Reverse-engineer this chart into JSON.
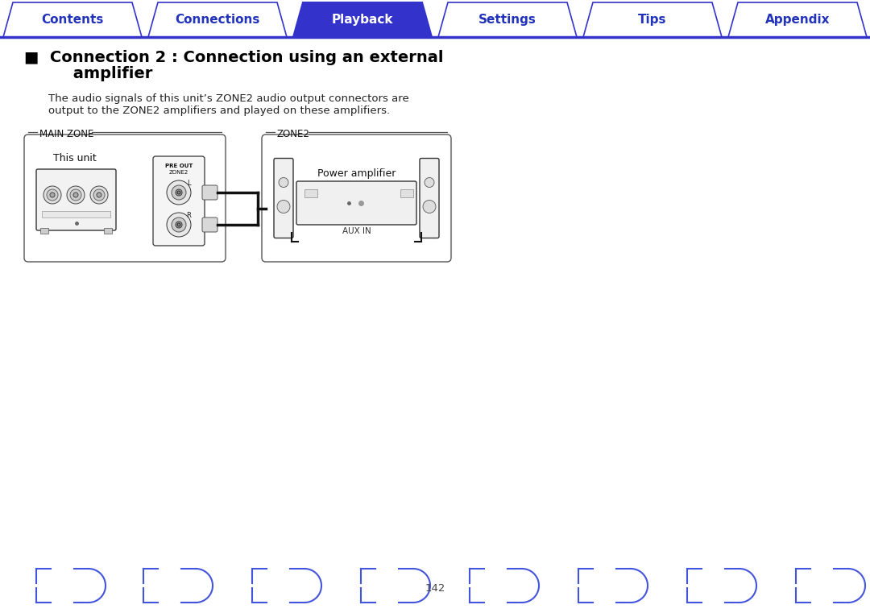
{
  "bg_color": "#ffffff",
  "tab_items": [
    "Contents",
    "Connections",
    "Playback",
    "Settings",
    "Tips",
    "Appendix"
  ],
  "tab_active_index": 2,
  "tab_active_bg": "#3333cc",
  "tab_active_fg": "#ffffff",
  "tab_inactive_fg": "#2233bb",
  "tab_line_color": "#3333cc",
  "title_line1": "■  Connection 2 : Connection using an external",
  "title_line2": "         amplifier",
  "body_text": "The audio signals of this unit’s ZONE2 audio output connectors are\noutput to the ZONE2 amplifiers and played on these amplifiers.",
  "main_zone_label": "MAIN ZONE",
  "zone2_label": "ZONE2",
  "this_unit_label": "This unit",
  "power_amp_label": "Power amplifier",
  "aux_in_label": "AUX IN",
  "pre_out_label": "PRE OUT",
  "zone2_sub_label": "ZONE2",
  "page_number": "142",
  "footer_bracket_color": "#4455dd"
}
